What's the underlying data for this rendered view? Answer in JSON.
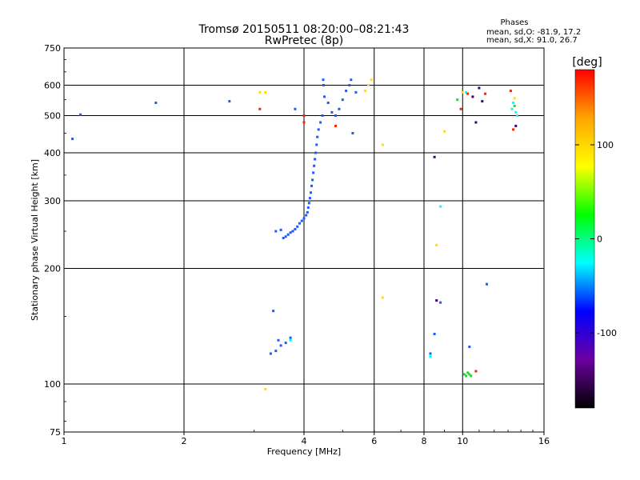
{
  "chart_data": {
    "type": "scatter",
    "title": "Tromsø 20150511 08:20:00–08:21:43",
    "subtitle": "RwPretec (8p)",
    "xlabel": "Frequency [MHz]",
    "ylabel": "Stationary phase Virtual Height [km]",
    "x_scale": "log",
    "y_scale": "log",
    "xlim": [
      1,
      16
    ],
    "ylim": [
      75,
      750
    ],
    "x_ticks": [
      1,
      2,
      4,
      6,
      8,
      10,
      16
    ],
    "y_ticks": [
      75,
      100,
      200,
      300,
      400,
      500,
      600,
      750
    ],
    "grid": true,
    "phases_box": {
      "heading": "Phases",
      "line1": "mean, sd,O: -81.9, 17.2",
      "line2": "mean, sd,X:  91.0, 26.7"
    },
    "colorbar": {
      "label": "[deg]",
      "range": [
        -180,
        180
      ],
      "ticks": [
        100,
        0,
        -100
      ],
      "colors": [
        "#ff0000",
        "#ffa500",
        "#ffff00",
        "#00ff00",
        "#00ffff",
        "#0000ff",
        "#6b00a0",
        "#000000"
      ]
    },
    "series": [
      {
        "color": "#1e5aff",
        "points": [
          [
            3.55,
            240
          ],
          [
            3.6,
            242
          ],
          [
            3.65,
            245
          ],
          [
            3.7,
            248
          ],
          [
            3.75,
            250
          ],
          [
            3.8,
            253
          ],
          [
            3.85,
            257
          ],
          [
            3.9,
            262
          ],
          [
            3.95,
            266
          ],
          [
            4.0,
            270
          ],
          [
            4.05,
            275
          ],
          [
            4.08,
            280
          ],
          [
            4.1,
            288
          ],
          [
            4.12,
            296
          ],
          [
            4.14,
            305
          ],
          [
            4.16,
            315
          ],
          [
            4.18,
            328
          ],
          [
            4.2,
            340
          ],
          [
            4.22,
            355
          ],
          [
            4.24,
            370
          ],
          [
            4.26,
            385
          ],
          [
            4.28,
            400
          ],
          [
            4.3,
            420
          ],
          [
            4.32,
            440
          ],
          [
            4.35,
            460
          ],
          [
            4.4,
            480
          ],
          [
            4.45,
            500
          ],
          [
            4.5,
            560
          ],
          [
            4.48,
            600
          ],
          [
            4.47,
            620
          ],
          [
            4.6,
            540
          ],
          [
            4.7,
            510
          ],
          [
            4.8,
            500
          ],
          [
            4.9,
            520
          ],
          [
            5.0,
            550
          ],
          [
            5.1,
            580
          ],
          [
            5.2,
            600
          ],
          [
            5.25,
            620
          ],
          [
            5.4,
            575
          ],
          [
            5.3,
            450
          ],
          [
            3.4,
            250
          ],
          [
            3.5,
            252
          ],
          [
            3.3,
            120
          ],
          [
            3.4,
            122
          ],
          [
            3.5,
            126
          ],
          [
            3.6,
            128
          ],
          [
            3.7,
            132
          ],
          [
            3.45,
            130
          ],
          [
            3.35,
            155
          ],
          [
            10.4,
            125
          ],
          [
            8.8,
            163
          ],
          [
            8.5,
            135
          ],
          [
            11.5,
            182
          ],
          [
            8.3,
            120
          ],
          [
            1.05,
            435
          ],
          [
            1.1,
            503
          ],
          [
            1.7,
            540
          ],
          [
            2.6,
            545
          ],
          [
            3.8,
            520
          ]
        ]
      },
      {
        "color": "#ffe000",
        "points": [
          [
            5.8,
            600
          ],
          [
            5.9,
            620
          ],
          [
            5.7,
            580
          ],
          [
            3.2,
            575
          ],
          [
            3.1,
            575
          ],
          [
            6.3,
            420
          ],
          [
            6.3,
            168
          ],
          [
            3.2,
            97
          ],
          [
            8.6,
            230
          ],
          [
            9.0,
            455
          ],
          [
            10.0,
            575
          ],
          [
            13.5,
            555
          ]
        ]
      },
      {
        "color": "#10e020",
        "points": [
          [
            10.1,
            106
          ],
          [
            10.2,
            105
          ],
          [
            10.3,
            107
          ],
          [
            10.4,
            106
          ],
          [
            10.5,
            105
          ],
          [
            9.7,
            550
          ],
          [
            13.5,
            530
          ]
        ]
      },
      {
        "color": "#00ffff",
        "points": [
          [
            8.8,
            290
          ],
          [
            10.2,
            575
          ],
          [
            13.3,
            520
          ],
          [
            13.4,
            540
          ],
          [
            13.6,
            510
          ],
          [
            13.7,
            500
          ],
          [
            8.3,
            118
          ],
          [
            3.7,
            130
          ]
        ]
      },
      {
        "color": "#ff2000",
        "points": [
          [
            4.0,
            500
          ],
          [
            4.0,
            480
          ],
          [
            10.3,
            570
          ],
          [
            11.4,
            570
          ],
          [
            13.2,
            580
          ],
          [
            13.4,
            460
          ],
          [
            3.1,
            520
          ],
          [
            4.8,
            470
          ],
          [
            9.9,
            520
          ],
          [
            10.8,
            108
          ]
        ]
      },
      {
        "color": "#3a0080",
        "points": [
          [
            10.8,
            480
          ],
          [
            11.2,
            545
          ],
          [
            11.0,
            590
          ],
          [
            10.6,
            560
          ],
          [
            8.5,
            390
          ],
          [
            8.6,
            165
          ],
          [
            13.6,
            470
          ]
        ]
      }
    ]
  }
}
